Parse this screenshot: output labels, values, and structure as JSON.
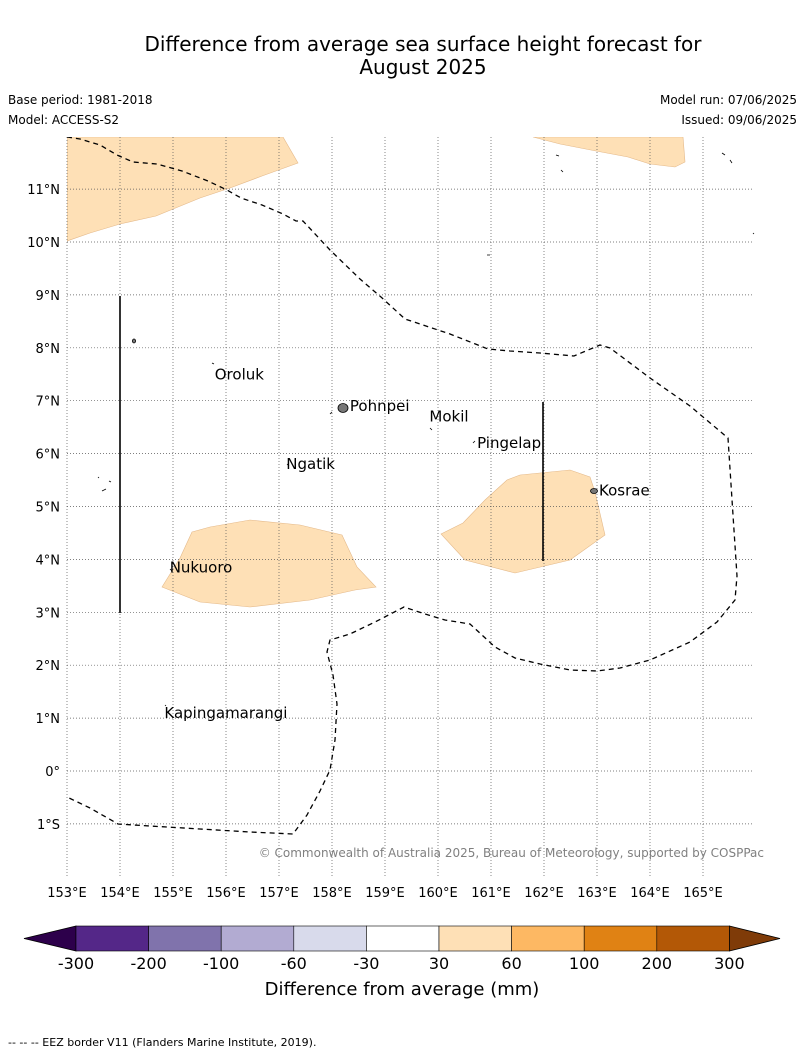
{
  "title_line1": "Difference from average sea surface height forecast for",
  "title_line2": "August 2025",
  "base_period": "Base period: 1981-2018",
  "model": "Model: ACCESS-S2",
  "model_run": "Model run: 07/06/2025",
  "issued": "Issued: 09/06/2025",
  "map": {
    "lat_labels": [
      {
        "lat": 11,
        "text": "11°N"
      },
      {
        "lat": 10,
        "text": "10°N"
      },
      {
        "lat": 9,
        "text": "9°N"
      },
      {
        "lat": 8,
        "text": "8°N"
      },
      {
        "lat": 7,
        "text": "7°N"
      },
      {
        "lat": 6,
        "text": "6°N"
      },
      {
        "lat": 5,
        "text": "5°N"
      },
      {
        "lat": 4,
        "text": "4°N"
      },
      {
        "lat": 3,
        "text": "3°N"
      },
      {
        "lat": 2,
        "text": "2°N"
      },
      {
        "lat": 1,
        "text": "1°N"
      },
      {
        "lat": 0,
        "text": "0°"
      },
      {
        "lat": -1,
        "text": "1°S"
      }
    ],
    "lon_labels": [
      {
        "lon": 153,
        "text": "153°E"
      },
      {
        "lon": 154,
        "text": "154°E"
      },
      {
        "lon": 155,
        "text": "155°E"
      },
      {
        "lon": 156,
        "text": "156°E"
      },
      {
        "lon": 157,
        "text": "157°E"
      },
      {
        "lon": 158,
        "text": "158°E"
      },
      {
        "lon": 159,
        "text": "159°E"
      },
      {
        "lon": 160,
        "text": "160°E"
      },
      {
        "lon": 161,
        "text": "161°E"
      },
      {
        "lon": 162,
        "text": "162°E"
      },
      {
        "lon": 163,
        "text": "163°E"
      },
      {
        "lon": 164,
        "text": "164°E"
      },
      {
        "lon": 165,
        "text": "165°E"
      }
    ],
    "places": [
      {
        "name": "Oroluk",
        "lon": 155.75,
        "lat": 7.5
      },
      {
        "name": "Pohnpei",
        "lon": 158.3,
        "lat": 6.9
      },
      {
        "name": "Mokil",
        "lon": 159.8,
        "lat": 6.7
      },
      {
        "name": "Pingelap",
        "lon": 160.7,
        "lat": 6.2
      },
      {
        "name": "Ngatik",
        "lon": 157.1,
        "lat": 5.8
      },
      {
        "name": "Kosrae",
        "lon": 163.0,
        "lat": 5.3
      },
      {
        "name": "Nukuoro",
        "lon": 154.9,
        "lat": 3.85
      },
      {
        "name": "Kapingamarangi",
        "lon": 154.8,
        "lat": 1.1
      }
    ],
    "anomaly_fill_color": "#fee0b6",
    "copyright": "© Commonwealth of Australia 2025, Bureau of Meteorology, supported by COSPPac"
  },
  "colorbar": {
    "title": "Difference from average (mm)",
    "colors": [
      "#2d004b",
      "#542788",
      "#8073ac",
      "#b2abd2",
      "#d8daeb",
      "#ffffff",
      "#fee0b6",
      "#fdb863",
      "#e08214",
      "#b35806",
      "#7f3b08"
    ],
    "ticks": [
      "-300",
      "-200",
      "-100",
      "-60",
      "-30",
      "30",
      "60",
      "100",
      "200",
      "300"
    ]
  },
  "footnote": "--  --  -- EEZ border V11 (Flanders Marine Institute, 2019)."
}
